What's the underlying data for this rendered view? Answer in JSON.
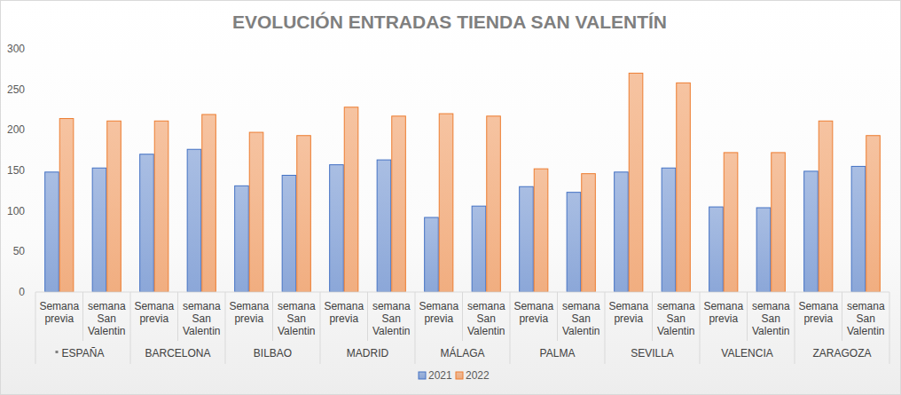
{
  "chart_data": {
    "type": "bar",
    "title": "EVOLUCIÓN ENTRADAS TIENDA SAN VALENTÍN",
    "groups": [
      "ESPAÑA",
      "BARCELONA",
      "BILBAO",
      "MADRID",
      "MÁLAGA",
      "PALMA",
      "SEVILLA",
      "VALENCIA",
      "ZARAGOZA"
    ],
    "categories": [
      "Semana previa",
      "semana San Valentin",
      "Semana previa",
      "semana San Valentin",
      "Semana previa",
      "semana San Valentin",
      "Semana previa",
      "semana San Valentin",
      "Semana previa",
      "semana San Valentin",
      "Semana previa",
      "semana San Valentin",
      "Semana previa",
      "semana San Valentin",
      "Semana previa",
      "semana San Valentin",
      "Semana previa",
      "semana San Valentin"
    ],
    "series": [
      {
        "name": "2021",
        "color": "#4472c4",
        "values": [
          148,
          153,
          170,
          176,
          131,
          144,
          157,
          163,
          92,
          106,
          130,
          123,
          148,
          153,
          105,
          104,
          149,
          155
        ]
      },
      {
        "name": "2022",
        "color": "#ed7d31",
        "values": [
          214,
          211,
          211,
          219,
          197,
          193,
          228,
          217,
          220,
          217,
          152,
          146,
          270,
          258,
          172,
          172,
          211,
          193
        ]
      }
    ],
    "ylim": [
      0,
      300
    ],
    "yticks": [
      0,
      50,
      100,
      150,
      200,
      250,
      300
    ],
    "grid": false,
    "legend": "bottom"
  }
}
